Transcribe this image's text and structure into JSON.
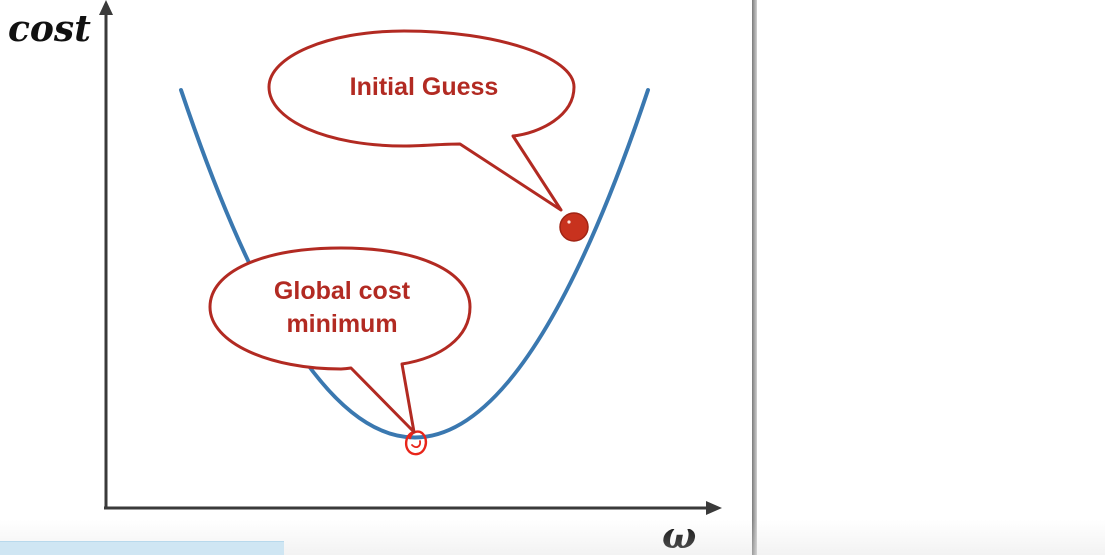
{
  "diagram": {
    "y_axis_label": "cost",
    "x_axis_label": "ω",
    "callouts": {
      "initial_guess": {
        "label": "Initial Guess"
      },
      "global_minimum": {
        "line1": "Global cost",
        "line2": "minimum"
      }
    },
    "colors": {
      "curve": "#3a78b0",
      "callout_border": "#b22a22",
      "callout_text": "#b22a22",
      "initial_guess_dot": "#c8321e",
      "minimum_marker": "#e8251a",
      "axis": "#3a3a3a",
      "panel_border": "#808080"
    },
    "markers": {
      "initial_guess_dot": "filled-circle",
      "minimum_marker": "hand-drawn-circle"
    }
  }
}
